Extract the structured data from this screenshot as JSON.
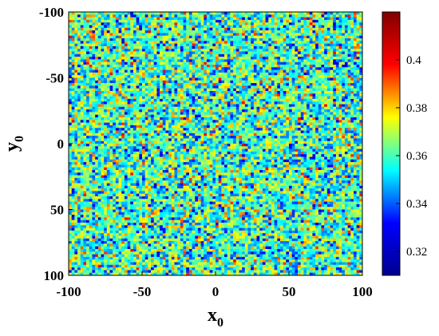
{
  "chart_data": {
    "type": "heatmap",
    "title": "",
    "xlabel": "x",
    "xlabel_subscript": "0",
    "ylabel": "y",
    "ylabel_subscript": "0",
    "xlim": [
      -100,
      100
    ],
    "ylim": [
      -100,
      100
    ],
    "y_direction": "reversed",
    "x_ticks": [
      -100,
      -50,
      0,
      50,
      100
    ],
    "y_ticks": [
      -100,
      -50,
      0,
      50,
      100
    ],
    "grid_resolution": [
      100,
      100
    ],
    "value_distribution": "spatially random field, mean approx. 0.36, values between approx. 0.31 and 0.42",
    "value_mean": 0.36,
    "value_min": 0.31,
    "value_max": 0.42,
    "colormap": "jet",
    "colormap_stops": [
      "#00008f",
      "#0000ff",
      "#00ffff",
      "#ffff00",
      "#ff0000",
      "#800000"
    ],
    "colorbar": {
      "placement": "right",
      "range": [
        0.31,
        0.42
      ],
      "ticks": [
        0.32,
        0.34,
        0.36,
        0.38,
        0.4
      ],
      "tick_labels": [
        "0.32",
        "0.34",
        "0.36",
        "0.38",
        "0.4"
      ]
    },
    "grid": false
  }
}
